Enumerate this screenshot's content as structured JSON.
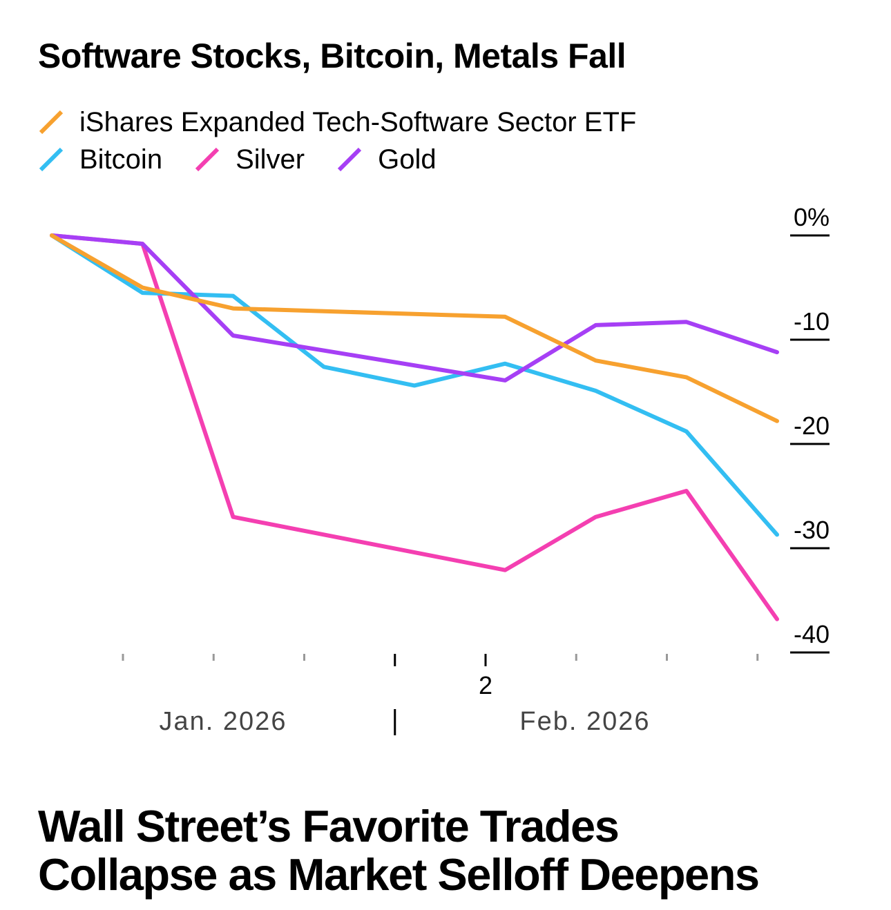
{
  "chart_data": {
    "type": "line",
    "title": "Software Stocks, Bitcoin, Metals Fall",
    "x": [
      1,
      2,
      3,
      4,
      5,
      6,
      7,
      8,
      9
    ],
    "series": [
      {
        "name": "iShares Expanded Tech-Software Sector ETF",
        "color": "#f7a12f",
        "values": [
          0,
          -5,
          -7,
          null,
          null,
          -7.8,
          -12,
          -13.6,
          -17.8
        ]
      },
      {
        "name": "Bitcoin",
        "color": "#33bef2",
        "values": [
          0,
          -5.5,
          -5.8,
          -12.6,
          -14.4,
          -12.3,
          -14.9,
          -18.8,
          -28.7
        ]
      },
      {
        "name": "Silver",
        "color": "#f43fb1",
        "values": [
          0,
          -0.8,
          -27,
          null,
          null,
          -32.1,
          -27,
          -24.5,
          -36.8
        ]
      },
      {
        "name": "Gold",
        "color": "#a63ff5",
        "values": [
          0,
          -0.8,
          -9.6,
          null,
          null,
          -13.9,
          -8.6,
          -8.3,
          -11.2
        ]
      }
    ],
    "ylim": [
      -40,
      0
    ],
    "yticks": [
      0,
      -10,
      -20,
      -30,
      -40
    ],
    "ytick_labels": [
      "0%",
      "-10",
      "-20",
      "-30",
      "-40"
    ],
    "xtick_label": "2",
    "period_labels": [
      "Jan. 2026",
      "Feb. 2026"
    ],
    "xlabel": "",
    "ylabel": ""
  },
  "headline": {
    "line1": "Wall Street’s Favorite Trades",
    "line2": "Collapse as Market Selloff Deepens"
  }
}
